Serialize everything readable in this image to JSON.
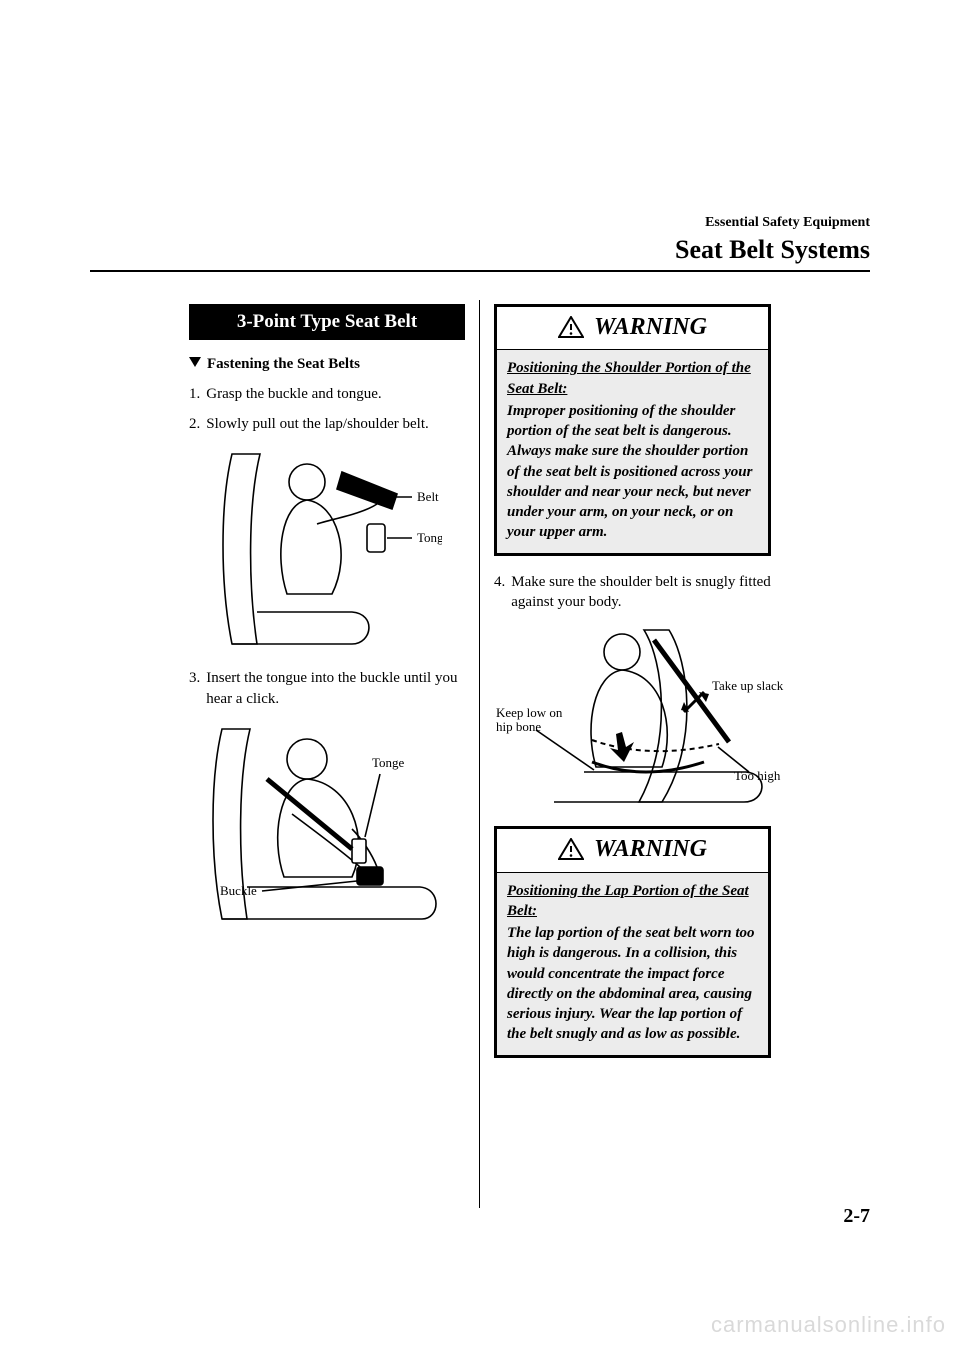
{
  "header": {
    "chapter": "Essential Safety Equipment",
    "section": "Seat Belt Systems"
  },
  "left": {
    "topic": "3-Point Type Seat Belt",
    "subheading": "Fastening the Seat Belts",
    "steps": {
      "s1": {
        "num": "1.",
        "text": "Grasp the buckle and tongue."
      },
      "s2": {
        "num": "2.",
        "text": "Slowly pull out the lap/shoulder belt."
      },
      "s3": {
        "num": "3.",
        "text": "Insert the tongue into the buckle until you hear a click."
      }
    },
    "fig1": {
      "label_belt": "Belt",
      "label_tongue": "Tongue"
    },
    "fig2": {
      "label_tongue": "Tonge",
      "label_buckle": "Buckle"
    }
  },
  "right": {
    "warning1": {
      "heading": "WARNING",
      "title": "Positioning the Shoulder Portion of the Seat Belt:",
      "body": "Improper positioning of the shoulder portion of the seat belt is dangerous. Always make sure the shoulder portion of the seat belt is positioned across your shoulder and near your neck, but never under your arm, on your neck, or on your upper arm."
    },
    "step4": {
      "num": "4.",
      "text": "Make sure the shoulder belt is snugly fitted against your body."
    },
    "fig3": {
      "label_keep_low": "Keep low on hip bone",
      "label_take_up": "Take up slack",
      "label_too_high": "Too high"
    },
    "warning2": {
      "heading": "WARNING",
      "title": "Positioning the Lap Portion of the Seat Belt:",
      "body": "The lap portion of the seat belt worn too high is dangerous. In a collision, this would concentrate the impact force directly on the abdominal area, causing serious injury. Wear the lap portion of the belt snugly and as low as possible."
    }
  },
  "page_number": "2-7",
  "watermark": "carmanualsonline.info",
  "colors": {
    "text": "#000000",
    "bg": "#ffffff",
    "warn_bg": "#ececec",
    "watermark": "#d9d9d9"
  }
}
